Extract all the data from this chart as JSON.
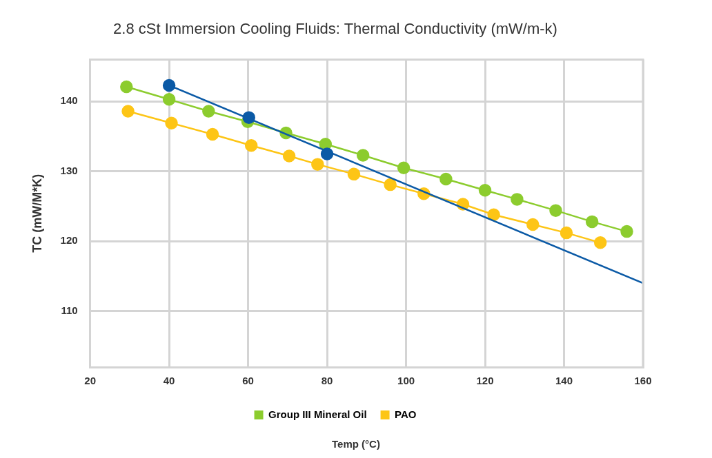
{
  "chart_data": {
    "type": "line",
    "title": "2.8 cSt Immersion Cooling Fluids: Thermal Conductivity (mW/m-k)",
    "xlabel": "Temp (°C)",
    "ylabel": "TC (mW/M*K)",
    "xlim": [
      20,
      160
    ],
    "xticks": [
      20,
      40,
      60,
      80,
      100,
      120,
      140,
      160
    ],
    "ylim": [
      102,
      146
    ],
    "yticks": [
      110,
      120,
      130,
      140
    ],
    "grid": true,
    "legend": "bottom",
    "marker": "circle",
    "line_style": "solid",
    "series": [
      {
        "type": "scatter",
        "color": "#0b5aa6",
        "x": [
          40,
          60.2,
          80
        ],
        "values": [
          142.3,
          137.7,
          132.5
        ]
      },
      {
        "color": "#0b5aa6",
        "marker": "none",
        "x": [
          40,
          160
        ],
        "values": [
          142.3,
          114.0
        ]
      },
      {
        "name": "Group III Mineral Oil",
        "color": "#8ccc2e",
        "x": [
          29.2,
          40.0,
          50.0,
          59.9,
          69.6,
          79.6,
          89.1,
          99.4,
          110.1,
          120.0,
          128.1,
          137.9,
          147.1,
          155.9
        ],
        "values": [
          142.1,
          140.3,
          138.6,
          137.1,
          135.5,
          133.9,
          132.3,
          130.5,
          128.9,
          127.3,
          126.0,
          124.4,
          122.8,
          121.4
        ]
      },
      {
        "name": "PAO",
        "color": "#fdc516",
        "x": [
          29.6,
          40.6,
          51.0,
          60.8,
          70.4,
          77.6,
          86.8,
          96.0,
          104.5,
          114.4,
          122.2,
          132.1,
          140.6,
          149.2
        ],
        "values": [
          138.6,
          136.9,
          135.3,
          133.7,
          132.2,
          131.0,
          129.6,
          128.1,
          126.8,
          125.3,
          123.8,
          122.4,
          121.2,
          119.8
        ]
      }
    ]
  }
}
